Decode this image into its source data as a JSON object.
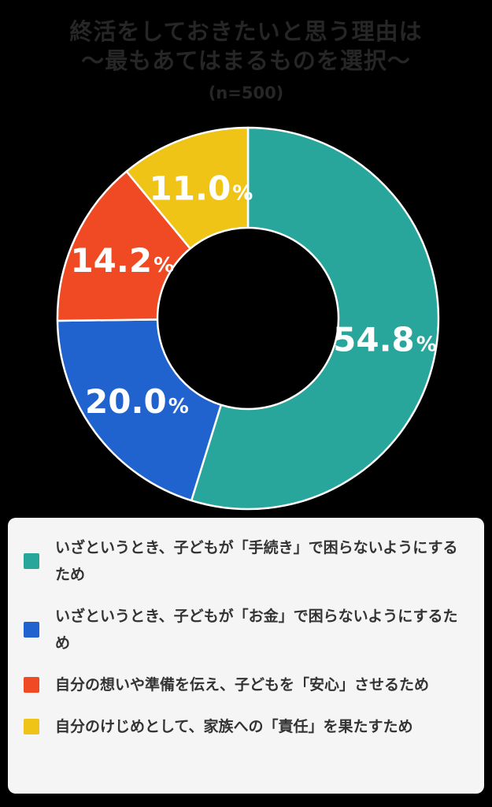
{
  "page": {
    "background": "#000000"
  },
  "title": {
    "line1": "終活をしておきたいと思う理由は",
    "line2": "〜最もあてはまるものを選択〜",
    "line3": "(n=500)",
    "color": "#262626"
  },
  "chart_data": {
    "type": "pie",
    "donut": true,
    "title": "終活をしておきたいと思う理由は 〜最もあてはまるものを選択〜 (n=500)",
    "sample_note": "(n=500)",
    "unit": "%",
    "start_angle_deg": 0,
    "direction": "clockwise",
    "center": [
      315,
      404
    ],
    "outer_radius": 242,
    "inner_radius": 115,
    "label_radius": 176,
    "stroke_color": "#ffffff",
    "legend_position": "bottom",
    "segments": [
      {
        "label": "いざというとき、子どもが「手続き」で困らないようにするため",
        "value": 54.8,
        "display": "54.8",
        "color": "#29A69B"
      },
      {
        "label": "いざというとき、子どもが「お金」で困らないようにするため",
        "value": 20.0,
        "display": "20.0",
        "color": "#2062CE"
      },
      {
        "label": "自分の想いや準備を伝え、子どもを「安心」させるため",
        "value": 14.2,
        "display": "14.2",
        "color": "#EF4A24"
      },
      {
        "label": "自分のけじめとして、家族への「責任」を果たすため",
        "value": 11.0,
        "display": "11.0",
        "color": "#EFC417"
      }
    ]
  },
  "legend": {
    "background": "#F5F5F6",
    "text_color": "#333333"
  }
}
